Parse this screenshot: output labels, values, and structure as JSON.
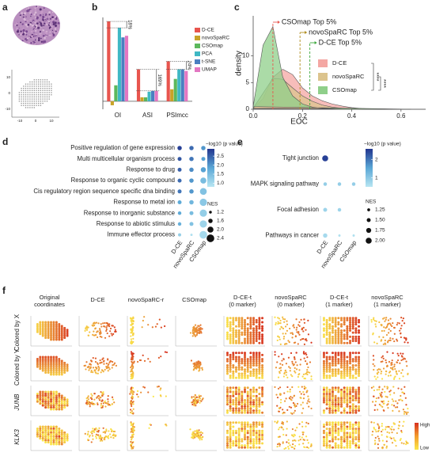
{
  "panel_labels": [
    "a",
    "b",
    "c",
    "d",
    "e",
    "f"
  ],
  "panel_a": {
    "grid_xticks": [
      -10,
      0,
      10
    ],
    "grid_yticks": [
      10,
      0,
      -10
    ]
  },
  "chart_data": [
    {
      "type": "bar",
      "categories": [
        "OI",
        "ASI",
        "PSImcc"
      ],
      "series": [
        {
          "name": "D-CE",
          "color": "#e8554e",
          "values": [
            1.0,
            0.4,
            0.5
          ]
        },
        {
          "name": "novoSpaRC",
          "color": "#c9a227",
          "values": [
            -0.05,
            0.05,
            0.15
          ]
        },
        {
          "name": "CSOmap",
          "color": "#5cb85c",
          "values": [
            0.2,
            0.05,
            0.28
          ]
        },
        {
          "name": "PCA",
          "color": "#3fb8c4",
          "values": [
            0.92,
            0.12,
            0.4
          ]
        },
        {
          "name": "t-SNE",
          "color": "#4a7fc1",
          "values": [
            0.8,
            0.13,
            0.4
          ]
        },
        {
          "name": "UMAP",
          "color": "#e377c2",
          "values": [
            0.82,
            0.13,
            0.38
          ]
        }
      ],
      "ylim": [
        -0.1,
        1.05
      ],
      "annotations": [
        "18%",
        "169%",
        "24%"
      ],
      "legend": "right"
    },
    {
      "type": "density",
      "xlabel": "EOC",
      "ylabel": "density",
      "x": [
        0,
        0.04,
        0.08,
        0.12,
        0.16,
        0.2,
        0.24,
        0.28,
        0.32,
        0.36,
        0.4,
        0.44,
        0.48,
        0.52,
        0.56,
        0.6,
        0.64
      ],
      "series": [
        {
          "name": "D-CE",
          "color": "#f4a7a3",
          "values": [
            0.1,
            2,
            6,
            7.5,
            6.5,
            4,
            2.5,
            1.6,
            1,
            0.6,
            0.3,
            0.15,
            0.05,
            0,
            0,
            0,
            0
          ]
        },
        {
          "name": "novoSpaRC",
          "color": "#dcc48e",
          "values": [
            0.2,
            3,
            5.8,
            5.6,
            4,
            2.5,
            1.5,
            0.8,
            0.4,
            0.2,
            0.1,
            0,
            0,
            0,
            0,
            0,
            0
          ]
        },
        {
          "name": "CSOmap",
          "color": "#8fcf8a",
          "values": [
            0.5,
            12,
            15.5,
            6,
            2.5,
            1,
            0.4,
            0.2,
            0.1,
            0,
            0,
            0,
            0,
            0,
            0,
            0,
            0
          ]
        }
      ],
      "xlim": [
        0,
        0.7
      ],
      "ylim": [
        0,
        17.5
      ],
      "xticks": [
        {
          "value": 0,
          "label": "0.0"
        },
        0.2,
        0.4,
        0.6
      ],
      "yticks": [
        0,
        5,
        10
      ],
      "thresholds": [
        {
          "text": "CSOmap Top 5%",
          "x": 0.08,
          "color": "#e8554e"
        },
        {
          "text": "novoSpaRC Top 5%",
          "x": 0.19,
          "color": "#b08d1e"
        },
        {
          "text": "D-CE Top 5%",
          "x": 0.23,
          "color": "#3aa83a"
        }
      ],
      "significance": [
        "****",
        "****"
      ]
    },
    {
      "type": "dot",
      "rows": [
        "Positive regulation of gene expression",
        "Multi multicellular organism process",
        "Response to drug",
        "Response to organic cyclic compound",
        "Cis regulatory region sequence specific dna binding",
        "Response to metal ion",
        "Response to inorganic substance",
        "Response to abiotic stimulus",
        "Immune effector process"
      ],
      "columns": [
        "D-CE",
        "novoSpaRC",
        "CSOmap"
      ],
      "p_values": [
        [
          2.8,
          2.4,
          2.0
        ],
        [
          2.6,
          2.3,
          1.9
        ],
        [
          2.5,
          2.1,
          1.9
        ],
        [
          2.4,
          2.0,
          1.5
        ],
        [
          2.3,
          2.0,
          1.4
        ],
        [
          1.8,
          1.6,
          1.3
        ],
        [
          1.8,
          1.5,
          1.2
        ],
        [
          1.7,
          1.4,
          1.1
        ],
        [
          1.2,
          0.9,
          1.0
        ]
      ],
      "nes": [
        [
          1.6,
          1.6,
          1.6
        ],
        [
          1.5,
          1.6,
          1.5
        ],
        [
          1.5,
          1.6,
          1.8
        ],
        [
          1.5,
          1.6,
          2.0
        ],
        [
          1.5,
          1.6,
          2.2
        ],
        [
          1.5,
          1.6,
          2.3
        ],
        [
          1.4,
          1.5,
          2.3
        ],
        [
          1.4,
          1.5,
          2.3
        ],
        [
          1.3,
          1.1,
          2.4
        ]
      ],
      "colorbar_title": "−log10 (p value)",
      "size_title": "NES",
      "clim": [
        0.8,
        2.9
      ],
      "cticks": [
        {
          "value": 1,
          "label": "1.0"
        },
        1.5,
        {
          "value": 2,
          "label": "2.0"
        },
        2.5
      ],
      "sticks": [
        1.2,
        1.6,
        {
          "value": 2,
          "label": "2.0"
        },
        2.4
      ]
    },
    {
      "type": "dot",
      "rows": [
        "Tight junction",
        "MAPK signaling pathway",
        "Focal adhesion",
        "Pathways in cancer"
      ],
      "columns": [
        "D-CE",
        "novoSpaRC",
        "CSOmap"
      ],
      "p_values": [
        [
          2.5,
          null,
          null
        ],
        [
          0.9,
          0.9,
          0.9
        ],
        [
          0.8,
          0.8,
          null
        ],
        [
          0.7,
          0.6,
          0.6
        ]
      ],
      "nes": [
        [
          2.0,
          null,
          null
        ],
        [
          1.4,
          1.4,
          1.4
        ],
        [
          1.5,
          1.4,
          null
        ],
        [
          1.6,
          1.1,
          1.1
        ]
      ],
      "colorbar_title": "−log10 (p value)",
      "size_title": "NES",
      "clim": [
        0.5,
        2.6
      ],
      "cticks": [
        1,
        2
      ],
      "sticks": [
        1.25,
        {
          "value": 1.5,
          "label": "1.50"
        },
        1.75,
        {
          "value": 2,
          "label": "2.00"
        }
      ]
    }
  ],
  "panel_f": {
    "columns": [
      [
        "Original",
        "coordinates"
      ],
      [
        "D-CE"
      ],
      [
        "novoSpaRC-r"
      ],
      [
        "CSOmap"
      ],
      [
        "D-CE-t",
        "(0 marker)"
      ],
      [
        "novoSpaRC",
        "(0 marker)"
      ],
      [
        "D-CE-t",
        "(1 marker)"
      ],
      [
        "novoSpaRC",
        "(1 marker)"
      ]
    ],
    "rows": [
      "Colored by X",
      "Colored by Y",
      "JUNB",
      "KLK3"
    ],
    "legend": [
      "High",
      "Low"
    ]
  }
}
